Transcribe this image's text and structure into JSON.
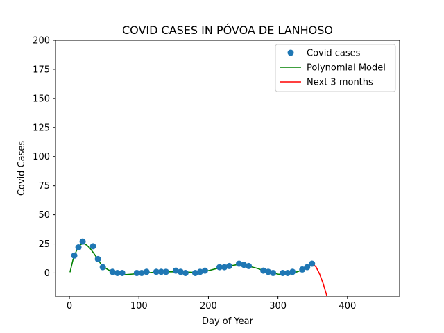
{
  "chart_data": {
    "type": "scatter",
    "title": "COVID CASES IN PÓVOA DE LANHOSO",
    "xlabel": "Day of Year",
    "ylabel": "Covid Cases",
    "xlim": [
      -20,
      475
    ],
    "ylim": [
      -20,
      200
    ],
    "xticks": [
      0,
      100,
      200,
      300,
      400
    ],
    "yticks": [
      0,
      25,
      50,
      75,
      100,
      125,
      150,
      175,
      200
    ],
    "grid": false,
    "legend_position": "top-right",
    "colors": {
      "points": "#1f77b4",
      "model": "#008000",
      "forecast": "#ff0000"
    },
    "series": [
      {
        "name": "Covid cases",
        "kind": "scatter",
        "x": [
          7,
          13,
          19,
          34,
          41,
          48,
          62,
          69,
          76,
          97,
          104,
          111,
          125,
          132,
          139,
          153,
          160,
          167,
          181,
          188,
          195,
          216,
          223,
          230,
          244,
          251,
          258,
          279,
          286,
          293,
          307,
          314,
          321,
          335,
          342,
          349
        ],
        "y": [
          15,
          22,
          27,
          23,
          12,
          5,
          1,
          0,
          0,
          0,
          0,
          1,
          1,
          1,
          1,
          2,
          1,
          0,
          0,
          1,
          2,
          5,
          5,
          6,
          8,
          7,
          6,
          2,
          1,
          0,
          0,
          0,
          1,
          3,
          5,
          8
        ]
      },
      {
        "name": "Polynomial Model",
        "kind": "line",
        "x": [
          1,
          5,
          10,
          15,
          20,
          25,
          30,
          35,
          40,
          45,
          50,
          55,
          60,
          65,
          70,
          80,
          90,
          100,
          120,
          140,
          160,
          180,
          200,
          210,
          220,
          230,
          240,
          250,
          260,
          270,
          280,
          290,
          300,
          310,
          320,
          330,
          340,
          350
        ],
        "y": [
          1,
          11,
          19,
          24,
          25.5,
          24,
          21,
          17,
          12.5,
          8,
          5,
          3,
          1.5,
          0,
          -1,
          -1.5,
          -1,
          -0.5,
          0.5,
          1,
          1,
          0.5,
          2,
          3.5,
          5,
          6,
          7,
          7,
          5.5,
          4,
          2,
          0.5,
          -1,
          -1.5,
          -0.5,
          1.5,
          4.5,
          8
        ]
      },
      {
        "name": "Next 3 months",
        "kind": "line",
        "x": [
          350,
          355,
          360,
          365,
          370,
          373
        ],
        "y": [
          8,
          5,
          -1,
          -9,
          -19,
          -24
        ]
      }
    ]
  }
}
